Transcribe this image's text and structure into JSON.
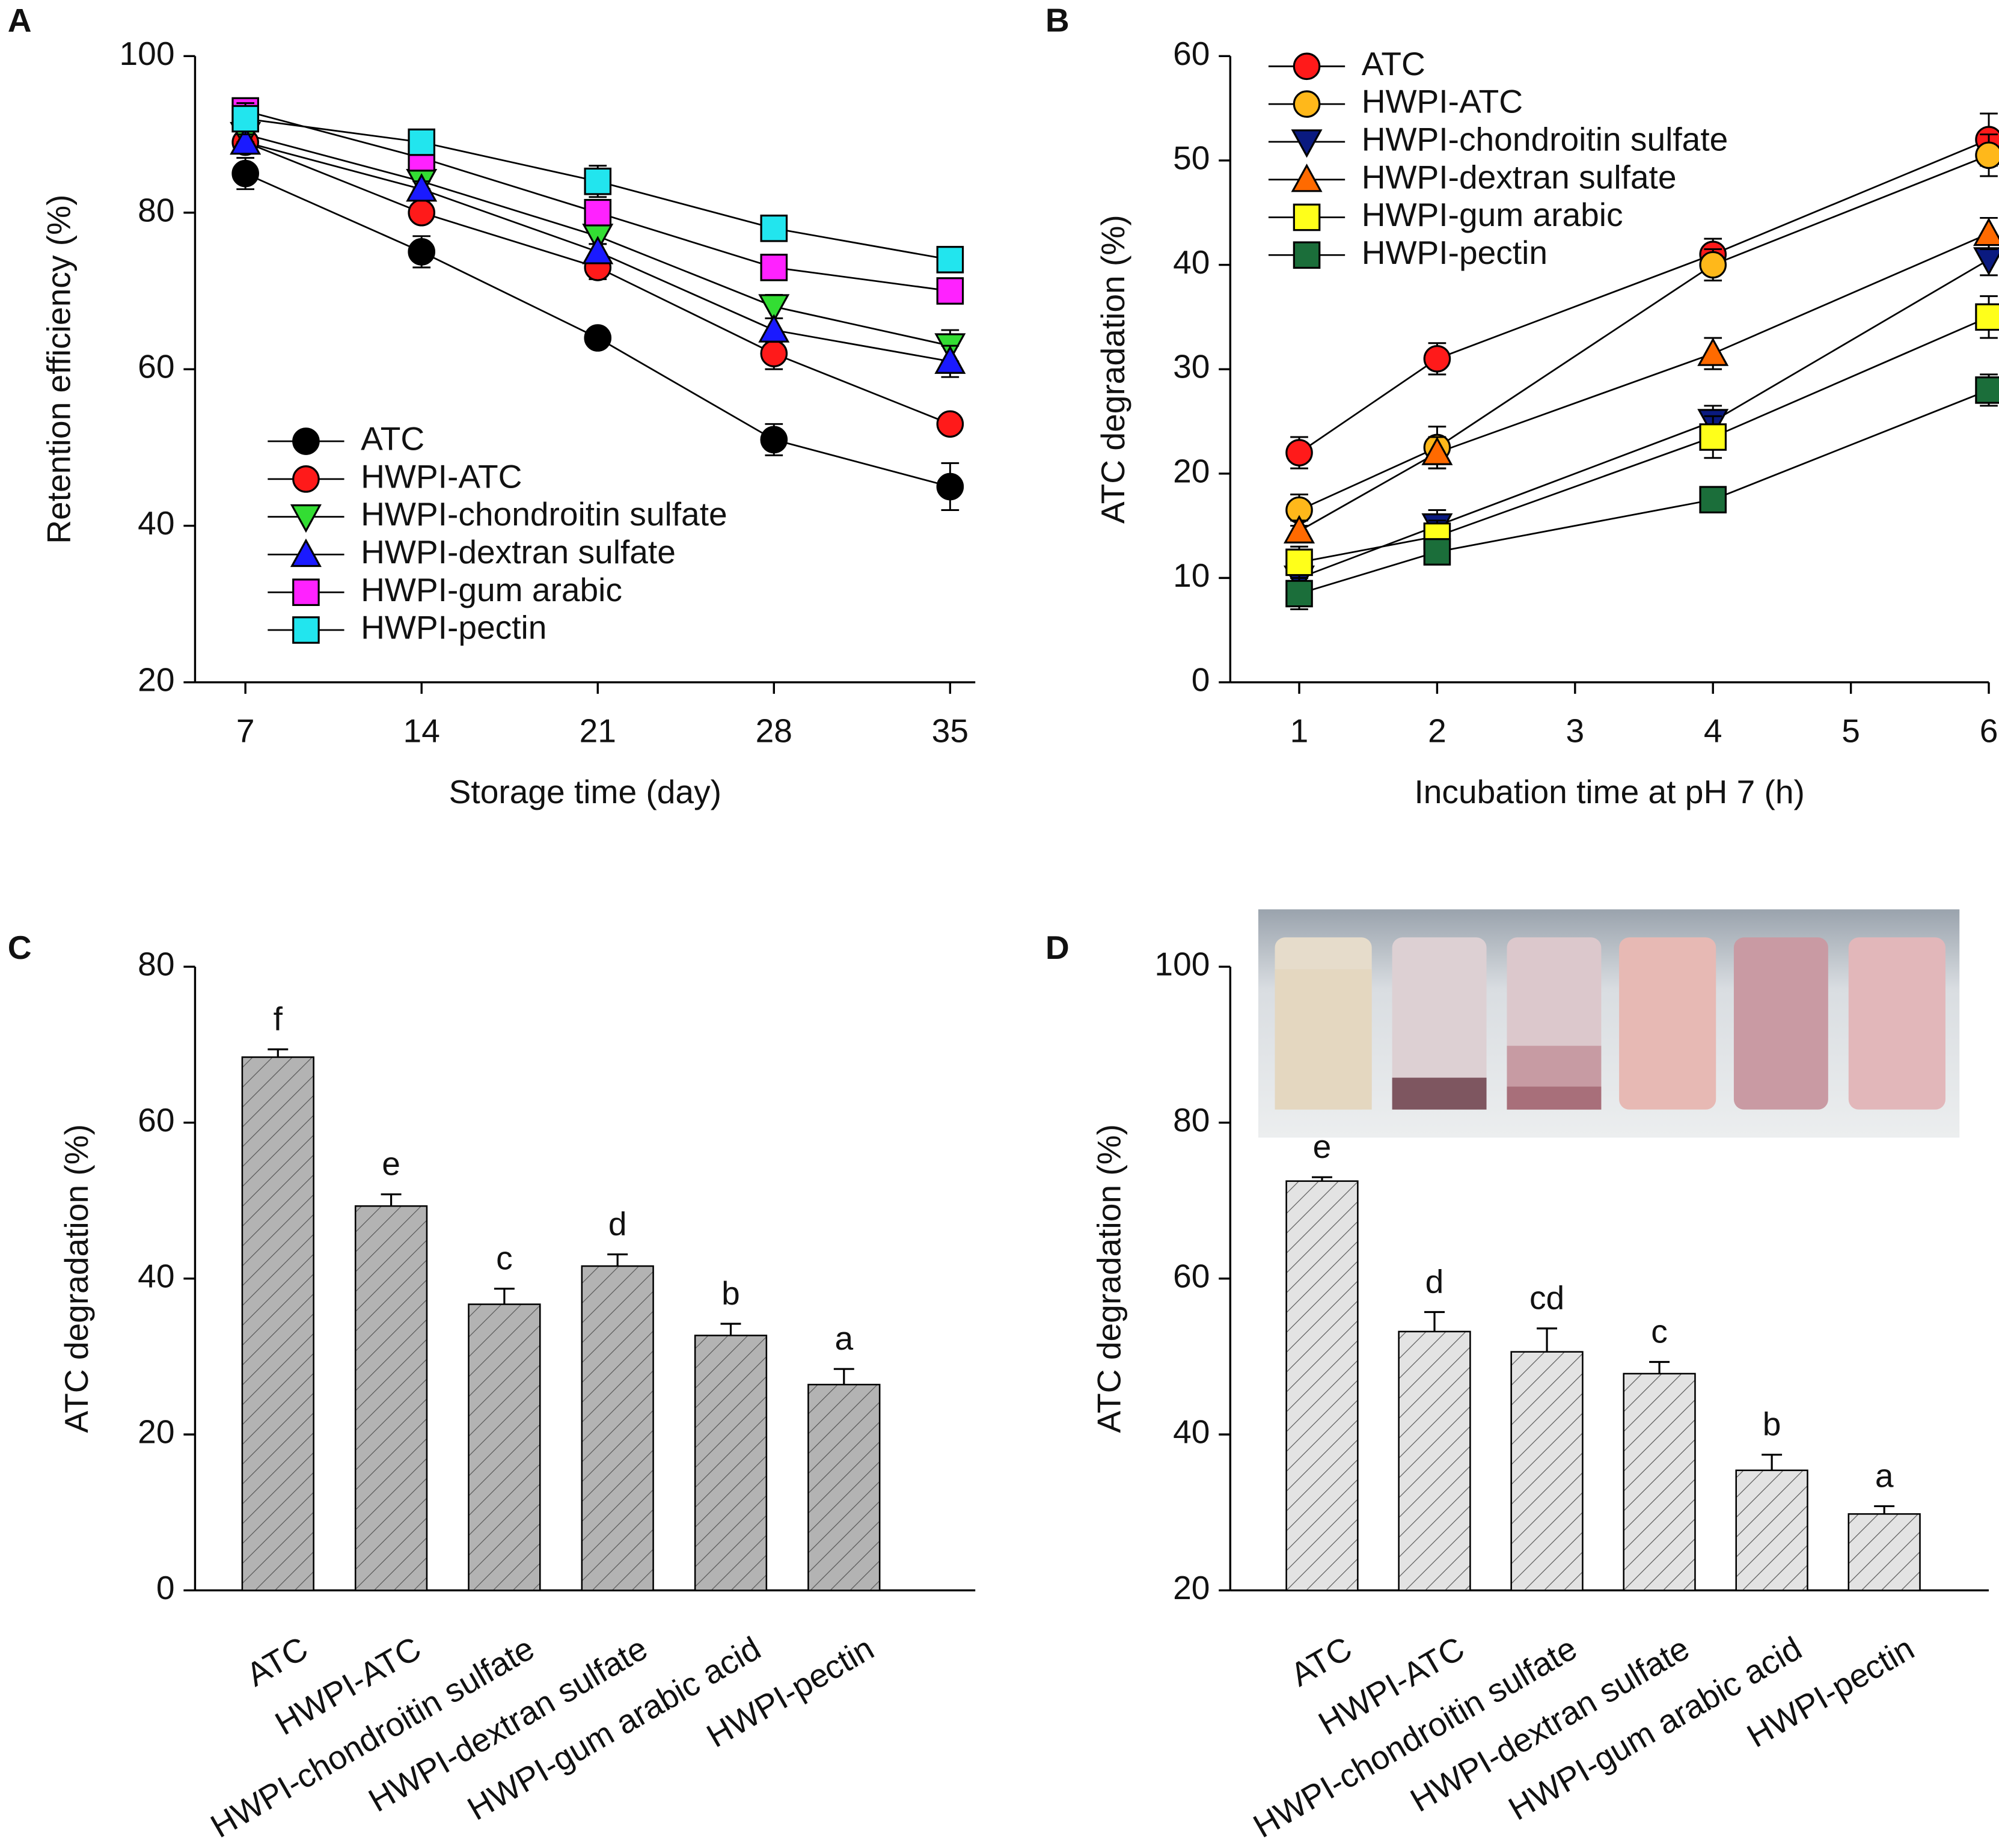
{
  "chart_data": [
    {
      "type": "line",
      "panel_label": "A",
      "x_label": "Storage time (day)",
      "y_label": "Retention efficiency (%)",
      "x": [
        7,
        14,
        21,
        28,
        35
      ],
      "xlim": [
        5,
        36
      ],
      "xticks": [
        7,
        14,
        21,
        28,
        35
      ],
      "ylim": [
        20,
        100
      ],
      "yticks": [
        20,
        40,
        60,
        80,
        100
      ],
      "legend": "lower left",
      "series": [
        {
          "name": "ATC",
          "color": "#000000",
          "marker": "circle",
          "values": [
            85,
            75,
            64,
            51,
            45
          ],
          "errors": [
            2,
            2,
            1,
            2,
            3
          ]
        },
        {
          "name": "HWPI-ATC",
          "color": "#ff1a1a",
          "marker": "circle",
          "values": [
            89,
            80,
            73,
            62,
            53
          ],
          "errors": [
            1,
            1,
            1.5,
            2,
            1
          ]
        },
        {
          "name": "HWPI-chondroitin sulfate",
          "color": "#33dd33",
          "marker": "triangle-down",
          "values": [
            90,
            84,
            77,
            68,
            63
          ],
          "errors": [
            1,
            1,
            1,
            1.5,
            2
          ]
        },
        {
          "name": "HWPI-dextran sulfate",
          "color": "#1a1aff",
          "marker": "triangle-up",
          "values": [
            89,
            83,
            75,
            65,
            61
          ],
          "errors": [
            1,
            1,
            1,
            1.5,
            2
          ]
        },
        {
          "name": "HWPI-gum arabic",
          "color": "#ff22ff",
          "marker": "square",
          "values": [
            93,
            87,
            80,
            73,
            70
          ],
          "errors": [
            1.5,
            1,
            1,
            1,
            1.5
          ]
        },
        {
          "name": "HWPI-pectin",
          "color": "#22e5ee",
          "marker": "square",
          "values": [
            92,
            89,
            84,
            78,
            74
          ],
          "errors": [
            2,
            1,
            2,
            1,
            1.5
          ]
        }
      ]
    },
    {
      "type": "line",
      "panel_label": "B",
      "x_label": "Incubation time at pH 7 (h)",
      "y_label": "ATC degradation (%)",
      "x": [
        1,
        2,
        4,
        6
      ],
      "xlim": [
        0.5,
        6
      ],
      "xticks": [
        1,
        2,
        3,
        4,
        5,
        6
      ],
      "ylim": [
        0,
        60
      ],
      "yticks": [
        0,
        10,
        20,
        30,
        40,
        50,
        60
      ],
      "legend": "upper left",
      "series": [
        {
          "name": "ATC",
          "color": "#ff1a1a",
          "marker": "circle",
          "values": [
            22,
            31,
            41,
            52
          ],
          "errors": [
            1.5,
            1.5,
            1.5,
            2.5
          ]
        },
        {
          "name": "HWPI-ATC",
          "color": "#ffb81a",
          "marker": "circle",
          "values": [
            16.5,
            22.5,
            40,
            50.5
          ],
          "errors": [
            1.5,
            2,
            1.5,
            2
          ]
        },
        {
          "name": "HWPI-chondroitin sulfate",
          "color": "#0a1a80",
          "marker": "triangle-down",
          "values": [
            10,
            15,
            25,
            40.5
          ],
          "errors": [
            1,
            1.5,
            1.5,
            1.5
          ]
        },
        {
          "name": "HWPI-dextran sulfate",
          "color": "#ff6a00",
          "marker": "triangle-up",
          "values": [
            14.5,
            22,
            31.5,
            43
          ],
          "errors": [
            1,
            1.5,
            1.5,
            1.5
          ]
        },
        {
          "name": "HWPI-gum arabic",
          "color": "#ffff1a",
          "marker": "square",
          "values": [
            11.5,
            14,
            23.5,
            35
          ],
          "errors": [
            1.5,
            1.5,
            2,
            2
          ]
        },
        {
          "name": "HWPI-pectin",
          "color": "#1b6e3a",
          "marker": "square",
          "values": [
            8.5,
            12.5,
            17.5,
            28
          ],
          "errors": [
            1.5,
            1,
            1,
            1.5
          ]
        }
      ]
    },
    {
      "type": "bar",
      "panel_label": "C",
      "y_label": "ATC degradation (%)",
      "color": "#b3b3b3",
      "categories": [
        "ATC",
        "HWPI-ATC",
        "HWPI-chondroitin sulfate",
        "HWPI-dextran sulfate",
        "HWPI-gum arabic acid",
        "HWPI-pectin"
      ],
      "values": [
        68.4,
        49.3,
        36.7,
        41.6,
        32.7,
        26.4
      ],
      "errors": [
        1,
        1.5,
        2,
        1.5,
        1.5,
        2
      ],
      "letters": [
        "f",
        "e",
        "c",
        "d",
        "b",
        "a"
      ],
      "ylim": [
        0,
        80
      ],
      "yticks": [
        0,
        20,
        40,
        60,
        80
      ]
    },
    {
      "type": "bar",
      "panel_label": "D",
      "y_label": "ATC degradation (%)",
      "color": "#e3e3e3",
      "categories": [
        "ATC",
        "HWPI-ATC",
        "HWPI-chondroitin sulfate",
        "HWPI-dextran sulfate",
        "HWPI-gum arabic acid",
        "HWPI-pectin"
      ],
      "values": [
        72.5,
        53.2,
        50.6,
        47.8,
        35.4,
        29.8
      ],
      "errors": [
        0.5,
        2.5,
        3,
        1.5,
        2,
        1
      ],
      "letters": [
        "e",
        "d",
        "cd",
        "c",
        "b",
        "a"
      ],
      "ylim": [
        20,
        100
      ],
      "yticks": [
        20,
        40,
        60,
        80,
        100
      ]
    }
  ]
}
